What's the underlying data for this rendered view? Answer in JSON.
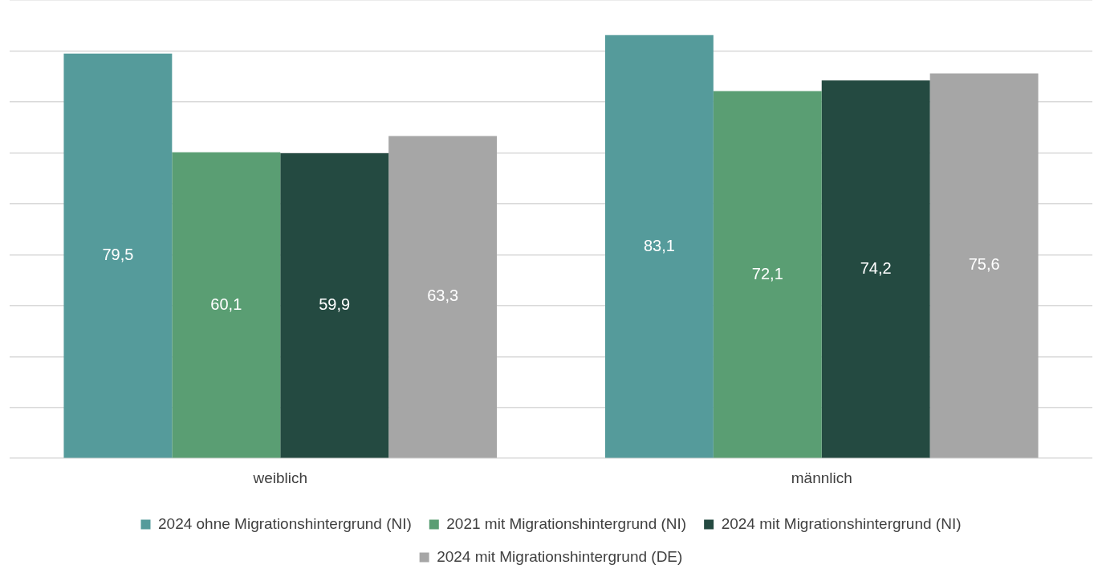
{
  "chart_data": {
    "type": "bar",
    "categories": [
      "weiblich",
      "männlich"
    ],
    "series": [
      {
        "name": "2024 ohne Migrationshintergrund (NI)",
        "color": "#559b9b",
        "values": [
          79.5,
          83.1
        ],
        "value_labels": [
          "79,5",
          "83,1"
        ]
      },
      {
        "name": "2021 mit Migrationshintergrund (NI)",
        "color": "#5a9e73",
        "values": [
          60.1,
          72.1
        ],
        "value_labels": [
          "60,1",
          "72,1"
        ]
      },
      {
        "name": "2024 mit Migrationshintergrund (NI)",
        "color": "#244a41",
        "values": [
          59.9,
          74.2
        ],
        "value_labels": [
          "59,9",
          "74,2"
        ]
      },
      {
        "name": "2024 mit Migrationshintergrund (DE)",
        "color": "#a6a6a6",
        "values": [
          63.3,
          75.6
        ],
        "value_labels": [
          "63,3",
          "75,6"
        ]
      }
    ],
    "tick_labels": "x",
    "grid": "y",
    "legend": "bottom"
  }
}
